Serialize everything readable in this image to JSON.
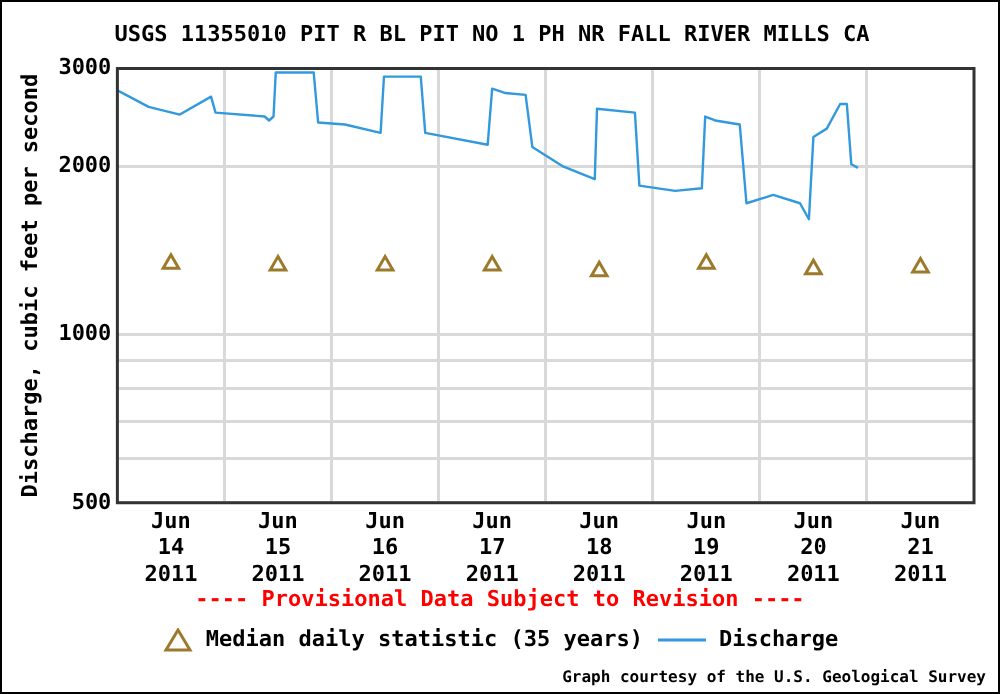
{
  "chart_data": {
    "type": "line",
    "title": "USGS 11355010 PIT R BL PIT NO 1 PH NR FALL RIVER MILLS CA",
    "ylabel": "Discharge, cubic feet per second",
    "log": "y",
    "xlim": [
      "2011-06-14",
      "2011-06-22"
    ],
    "xticks": [
      {
        "value": "2011-06-14T12:00",
        "label": "Jun 14 2011"
      },
      {
        "value": "2011-06-15T12:00",
        "label": "Jun 15 2011"
      },
      {
        "value": "2011-06-16T12:00",
        "label": "Jun 16 2011"
      },
      {
        "value": "2011-06-17T12:00",
        "label": "Jun 17 2011"
      },
      {
        "value": "2011-06-18T12:00",
        "label": "Jun 18 2011"
      },
      {
        "value": "2011-06-19T12:00",
        "label": "Jun 19 2011"
      },
      {
        "value": "2011-06-20T12:00",
        "label": "Jun 20 2011"
      },
      {
        "value": "2011-06-21T12:00",
        "label": "Jun 21 2011"
      },
      {
        "value": "2011-06-15",
        "label": null
      },
      {
        "value": "2011-06-16",
        "label": null
      },
      {
        "value": "2011-06-17",
        "label": null
      },
      {
        "value": "2011-06-18",
        "label": null
      },
      {
        "value": "2011-06-19",
        "label": null
      },
      {
        "value": "2011-06-20",
        "label": null
      },
      {
        "value": "2011-06-21",
        "label": null
      }
    ],
    "ylim": [
      500,
      3000
    ],
    "yticks": [
      500,
      {
        "value": 600,
        "label": null
      },
      {
        "value": 700,
        "label": null
      },
      {
        "value": 800,
        "label": null
      },
      {
        "value": 900,
        "label": null
      },
      1000,
      2000,
      3000
    ],
    "grid": true,
    "legend": "bottom",
    "annotations": [
      "---- Provisional Data Subject to Revision ----",
      "Graph courtesy of the U.S. Geological Survey"
    ],
    "series": [
      {
        "name": "Median daily statistic (35 years)",
        "type": "scatter",
        "marker": "triangle",
        "color": "#9c7a2c",
        "x": [
          "2011-06-14T12:00",
          "2011-06-15T12:00",
          "2011-06-16T12:00",
          "2011-06-17T12:00",
          "2011-06-18T12:00",
          "2011-06-19T12:00",
          "2011-06-20T12:00",
          "2011-06-21T12:00"
        ],
        "values": [
          1340,
          1330,
          1330,
          1330,
          1300,
          1340,
          1310,
          1320
        ]
      },
      {
        "name": "Discharge",
        "type": "line",
        "marker": "none",
        "color": "#3399dd",
        "x": [
          "2011-06-14T00:00",
          "2011-06-14T07:00",
          "2011-06-14T14:00",
          "2011-06-14T21:00",
          "2011-06-14T22:00",
          "2011-06-15T09:00",
          "2011-06-15T10:00",
          "2011-06-15T11:00",
          "2011-06-15T11:30",
          "2011-06-15T20:00",
          "2011-06-15T21:00",
          "2011-06-16T03:00",
          "2011-06-16T11:00",
          "2011-06-16T11:45",
          "2011-06-16T20:00",
          "2011-06-16T21:00",
          "2011-06-17T11:00",
          "2011-06-17T12:00",
          "2011-06-17T15:00",
          "2011-06-17T19:30",
          "2011-06-17T21:00",
          "2011-06-18T04:00",
          "2011-06-18T11:00",
          "2011-06-18T11:30",
          "2011-06-18T20:00",
          "2011-06-18T21:00",
          "2011-06-19T05:00",
          "2011-06-19T11:00",
          "2011-06-19T11:45",
          "2011-06-19T14:00",
          "2011-06-19T19:30",
          "2011-06-19T21:00",
          "2011-06-20T03:00",
          "2011-06-20T09:00",
          "2011-06-20T11:00",
          "2011-06-20T12:00",
          "2011-06-20T15:00",
          "2011-06-20T18:00",
          "2011-06-20T19:30",
          "2011-06-20T20:30",
          "2011-06-20T22:00"
        ],
        "values": [
          2740,
          2560,
          2480,
          2670,
          2500,
          2460,
          2420,
          2460,
          2950,
          2950,
          2400,
          2380,
          2300,
          2900,
          2900,
          2300,
          2190,
          2760,
          2710,
          2690,
          2170,
          2000,
          1900,
          2540,
          2500,
          1850,
          1810,
          1830,
          2460,
          2420,
          2380,
          1720,
          1780,
          1720,
          1610,
          2260,
          2340,
          2590,
          2590,
          2020,
          1990
        ]
      }
    ]
  }
}
